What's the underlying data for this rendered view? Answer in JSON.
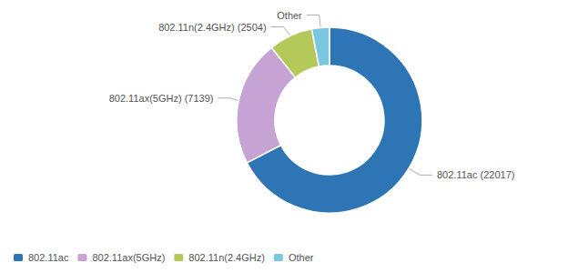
{
  "chart_data": {
    "type": "pie",
    "categories": [
      "802.11ac",
      "802.11ax(5GHz)",
      "802.11n(2.4GHz)",
      "Other"
    ],
    "values": [
      22017,
      7139,
      2504,
      1000
    ],
    "value_labels": [
      "802.11ac (22017)",
      "802.11ax(5GHz) (7139)",
      "802.11n(2.4GHz) (2504)",
      "Other"
    ],
    "colors": [
      "#2e75b6",
      "#c5a3d4",
      "#b5c95a",
      "#7ac7e2"
    ],
    "data_labels": true,
    "legend": "lower left"
  }
}
